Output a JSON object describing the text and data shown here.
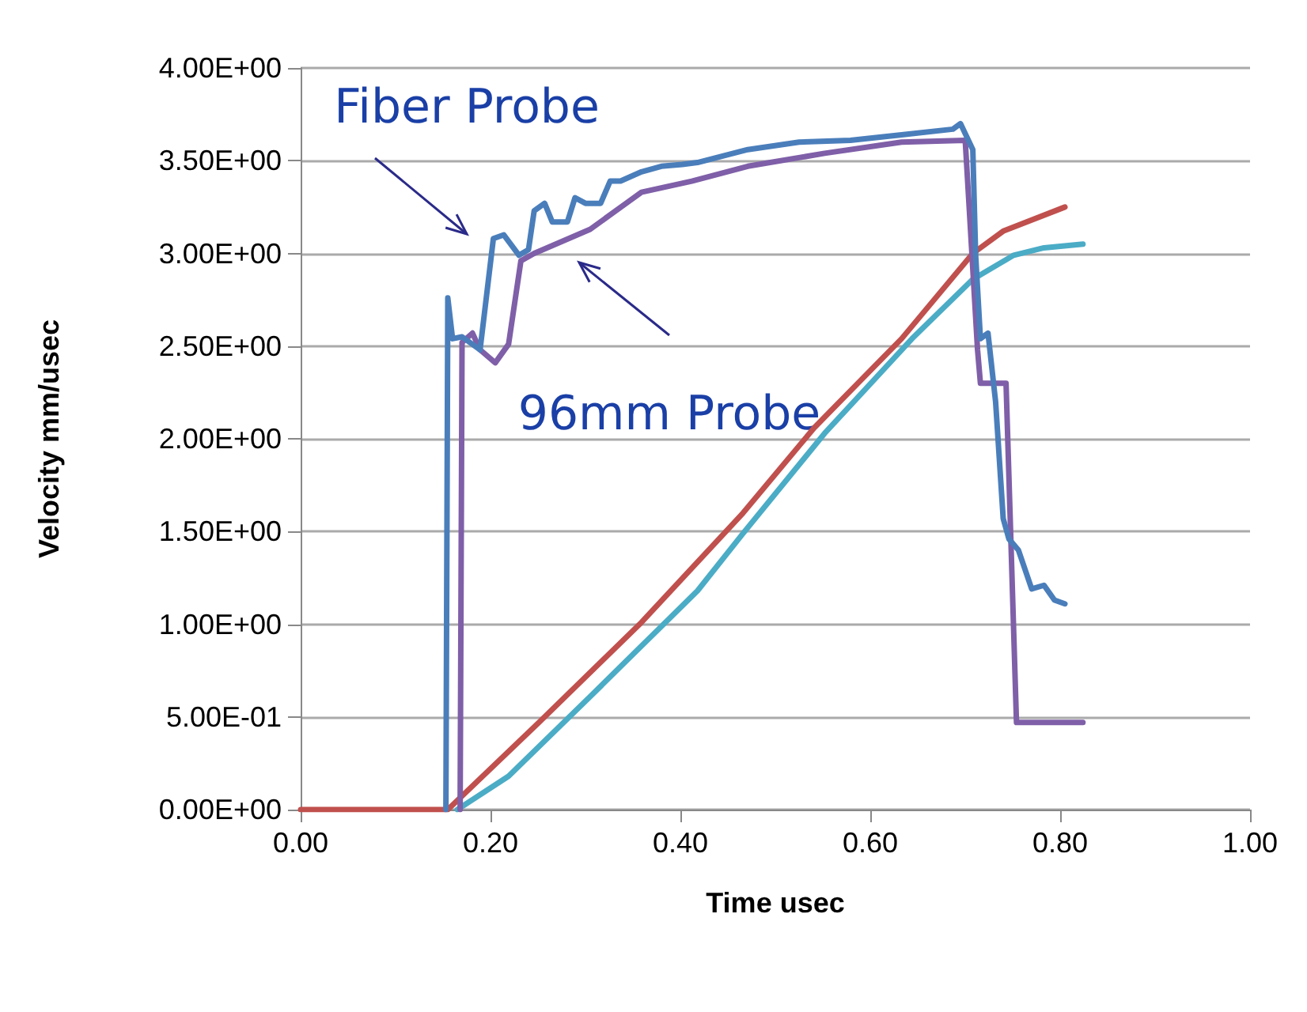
{
  "chart_data": {
    "type": "line",
    "xlabel": "Time usec",
    "ylabel": "Velocity mm/usec",
    "xlim": [
      0,
      1
    ],
    "xticks": [
      {
        "value": 0,
        "label": "0.00"
      },
      {
        "value": 0.2,
        "label": "0.20"
      },
      {
        "value": 0.4,
        "label": "0.40"
      },
      {
        "value": 0.6,
        "label": "0.60"
      },
      {
        "value": 0.8,
        "label": "0.80"
      },
      {
        "value": 1,
        "label": "1.00"
      }
    ],
    "ylim": [
      0,
      4
    ],
    "yticks": [
      {
        "value": 0,
        "label": "0.00E+00"
      },
      {
        "value": 0.5,
        "label": "5.00E-01"
      },
      {
        "value": 1,
        "label": "1.00E+00"
      },
      {
        "value": 1.5,
        "label": "1.50E+00"
      },
      {
        "value": 2,
        "label": "2.00E+00"
      },
      {
        "value": 2.5,
        "label": "2.50E+00"
      },
      {
        "value": 3,
        "label": "3.00E+00"
      },
      {
        "value": 3.5,
        "label": "3.50E+00"
      },
      {
        "value": 4,
        "label": "4.00E+00"
      }
    ],
    "grid": "y",
    "marker": "none",
    "line_style": "solid",
    "series": [
      {
        "color": "#c0504d",
        "x": [
          0,
          0.155,
          0.251,
          0.359,
          0.466,
          0.541,
          0.633,
          0.708,
          0.74,
          0.805
        ],
        "values": [
          0,
          0,
          0.47,
          1.01,
          1.6,
          2.06,
          2.54,
          3.0,
          3.12,
          3.25
        ]
      },
      {
        "color": "#4bacc6",
        "x": [
          0.165,
          0.219,
          0.305,
          0.418,
          0.466,
          0.552,
          0.644,
          0.708,
          0.751,
          0.783,
          0.824
        ],
        "values": [
          0,
          0.18,
          0.61,
          1.18,
          1.49,
          2.03,
          2.54,
          2.86,
          2.99,
          3.03,
          3.05
        ]
      },
      {
        "color": "#7f5fa8",
        "x": [
          0.168,
          0.17,
          0.181,
          0.189,
          0.205,
          0.219,
          0.232,
          0.246,
          0.305,
          0.359,
          0.412,
          0.471,
          0.552,
          0.633,
          0.7,
          0.713,
          0.716,
          0.743,
          0.754,
          0.824
        ],
        "values": [
          0,
          2.52,
          2.57,
          2.48,
          2.41,
          2.51,
          2.96,
          3.0,
          3.13,
          3.33,
          3.39,
          3.47,
          3.54,
          3.6,
          3.61,
          2.48,
          2.3,
          2.3,
          0.47,
          0.47
        ]
      },
      {
        "color": "#4a7ebb",
        "x": [
          0.153,
          0.155,
          0.16,
          0.17,
          0.189,
          0.203,
          0.214,
          0.23,
          0.24,
          0.246,
          0.257,
          0.265,
          0.281,
          0.289,
          0.3,
          0.316,
          0.326,
          0.337,
          0.359,
          0.38,
          0.402,
          0.418,
          0.471,
          0.525,
          0.579,
          0.633,
          0.687,
          0.695,
          0.708,
          0.711,
          0.716,
          0.724,
          0.732,
          0.74,
          0.746,
          0.756,
          0.77,
          0.783,
          0.794,
          0.805
        ],
        "values": [
          0,
          2.76,
          2.54,
          2.55,
          2.48,
          3.08,
          3.1,
          2.99,
          3.02,
          3.23,
          3.27,
          3.17,
          3.17,
          3.3,
          3.27,
          3.27,
          3.39,
          3.39,
          3.44,
          3.47,
          3.48,
          3.49,
          3.56,
          3.6,
          3.61,
          3.64,
          3.67,
          3.7,
          3.56,
          2.99,
          2.54,
          2.57,
          2.2,
          1.57,
          1.46,
          1.4,
          1.19,
          1.21,
          1.13,
          1.11
        ]
      }
    ],
    "annotations": [
      "Fiber Probe",
      "96mm Probe"
    ]
  }
}
